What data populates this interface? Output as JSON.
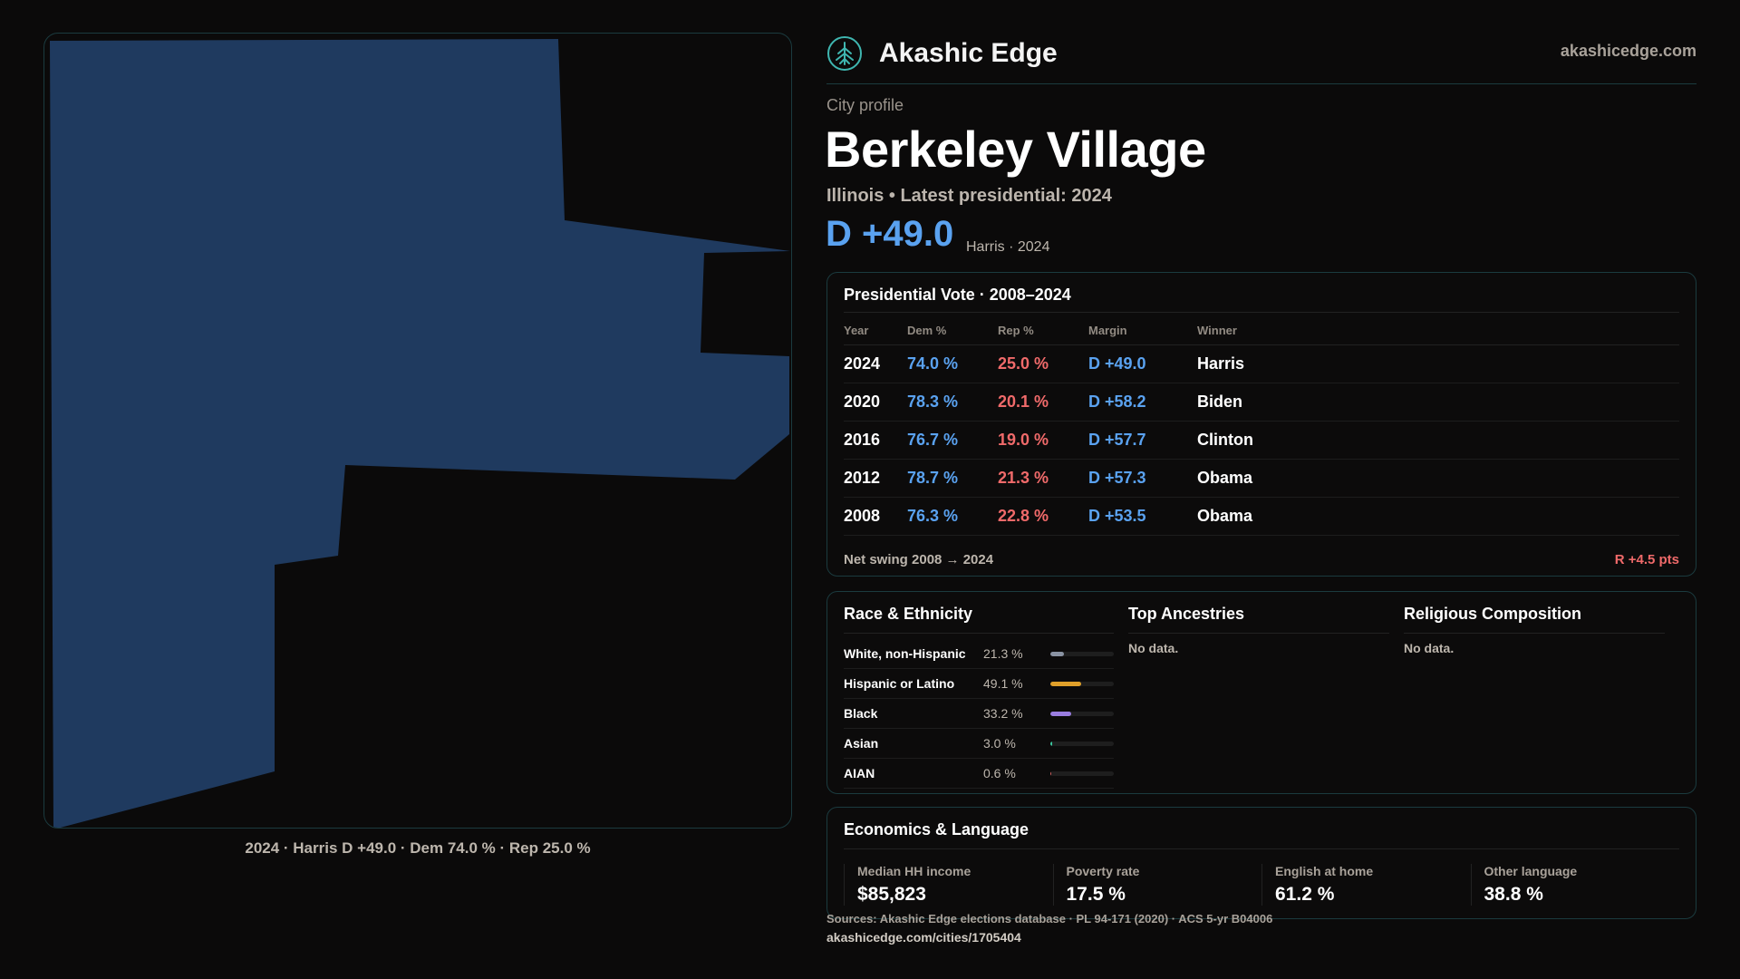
{
  "brand": {
    "name": "Akashic Edge",
    "url": "akashicedge.com",
    "logo_icon": "tree-emblem-icon"
  },
  "profile": {
    "eyebrow": "City profile",
    "title": "Berkeley Village",
    "subtitle": "Illinois • Latest presidential: 2024",
    "margin": "D +49.0",
    "margin_note": "Harris · 2024"
  },
  "map": {
    "caption": "2024 · Harris D +49.0 · Dem 74.0 % · Rep 25.0 %",
    "fill_color": "#1f3a5f"
  },
  "vote": {
    "title": "Presidential Vote · 2008–2024",
    "headers": {
      "year": "Year",
      "dem": "Dem %",
      "rep": "Rep %",
      "margin": "Margin",
      "winner": "Winner"
    },
    "rows": [
      {
        "year": "2024",
        "dem": "74.0 %",
        "rep": "25.0 %",
        "margin": "D +49.0",
        "winner": "Harris"
      },
      {
        "year": "2020",
        "dem": "78.3 %",
        "rep": "20.1 %",
        "margin": "D +58.2",
        "winner": "Biden"
      },
      {
        "year": "2016",
        "dem": "76.7 %",
        "rep": "19.0 %",
        "margin": "D +57.7",
        "winner": "Clinton"
      },
      {
        "year": "2012",
        "dem": "78.7 %",
        "rep": "21.3 %",
        "margin": "D +57.3",
        "winner": "Obama"
      },
      {
        "year": "2008",
        "dem": "76.3 %",
        "rep": "22.8 %",
        "margin": "D +53.5",
        "winner": "Obama"
      }
    ],
    "swing_label": "Net swing 2008 → 2024",
    "swing_value": "R +4.5 pts"
  },
  "race": {
    "title": "Race & Ethnicity",
    "rows": [
      {
        "label": "White, non-Hispanic",
        "pct": "21.3 %",
        "value": 21.3,
        "color": "#8a93a3"
      },
      {
        "label": "Hispanic or Latino",
        "pct": "49.1 %",
        "value": 49.1,
        "color": "#e0a02a"
      },
      {
        "label": "Black",
        "pct": "33.2 %",
        "value": 33.2,
        "color": "#9a7de0"
      },
      {
        "label": "Asian",
        "pct": "3.0 %",
        "value": 3.0,
        "color": "#3cc9a0"
      },
      {
        "label": "AIAN",
        "pct": "0.6 %",
        "value": 0.6,
        "color": "#d06060"
      }
    ]
  },
  "ancestries": {
    "title": "Top Ancestries",
    "empty": "No data."
  },
  "religion": {
    "title": "Religious Composition",
    "empty": "No data."
  },
  "economics": {
    "title": "Economics & Language",
    "cells": [
      {
        "label": "Median HH income",
        "value": "$85,823"
      },
      {
        "label": "Poverty rate",
        "value": "17.5 %"
      },
      {
        "label": "English at home",
        "value": "61.2 %"
      },
      {
        "label": "Other language",
        "value": "38.8 %"
      }
    ]
  },
  "footer": {
    "sources": "Sources: Akashic Edge elections database · PL 94-171 (2020) · ACS 5-yr B04006",
    "url": "akashicedge.com/cities/1705404"
  }
}
